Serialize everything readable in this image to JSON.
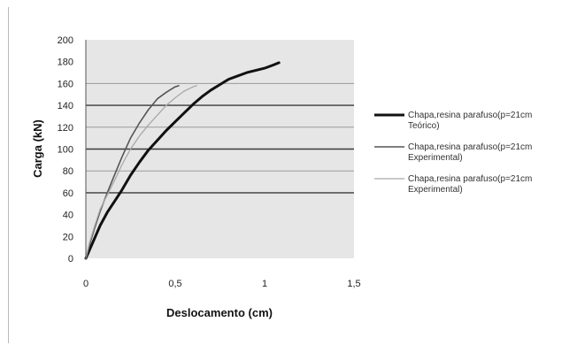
{
  "chart_data": {
    "type": "line",
    "title": "",
    "xlabel": "Deslocamento (cm)",
    "ylabel": "Carga (kN)",
    "xlim": [
      0,
      1.5
    ],
    "ylim": [
      0,
      200
    ],
    "x_ticks": [
      "0",
      "0,5",
      "1",
      "1,5"
    ],
    "x_tick_values": [
      0,
      0.5,
      1,
      1.5
    ],
    "y_ticks": [
      "0",
      "20",
      "40",
      "60",
      "80",
      "100",
      "120",
      "140",
      "160",
      "180",
      "200"
    ],
    "y_tick_values": [
      0,
      20,
      40,
      60,
      80,
      100,
      120,
      140,
      160,
      180,
      200
    ],
    "major_gridlines": [
      60,
      100,
      140
    ],
    "minor_gridlines": [
      80,
      120,
      160
    ],
    "grid": true,
    "plot_background": "#e6e6e6",
    "legend_position": "right",
    "series": [
      {
        "name": "Chapa,resina parafuso(p=21cm Teórico)",
        "legend_lines": [
          "Chapa,resina parafuso(p=21cm",
          "Teórico)"
        ],
        "color": "#111111",
        "style": "thick",
        "x": [
          0,
          0.04,
          0.08,
          0.12,
          0.16,
          0.2,
          0.25,
          0.3,
          0.35,
          0.4,
          0.45,
          0.5,
          0.55,
          0.6,
          0.65,
          0.7,
          0.75,
          0.8,
          0.85,
          0.9,
          0.95,
          1.0,
          1.05,
          1.08
        ],
        "y": [
          0,
          15,
          30,
          42,
          52,
          62,
          76,
          88,
          99,
          108,
          117,
          125,
          133,
          141,
          148,
          154,
          159,
          164,
          167,
          170,
          172,
          174,
          177,
          179
        ]
      },
      {
        "name": "Chapa,resina parafuso(p=21cm Experimental)",
        "legend_lines": [
          "Chapa,resina parafuso(p=21cm",
          "Experimental)"
        ],
        "color": "#555555",
        "style": "medium",
        "x": [
          0,
          0.02,
          0.05,
          0.08,
          0.12,
          0.16,
          0.2,
          0.25,
          0.3,
          0.35,
          0.4,
          0.45,
          0.5,
          0.52
        ],
        "y": [
          0,
          12,
          28,
          43,
          60,
          76,
          92,
          110,
          124,
          136,
          146,
          152,
          157,
          158
        ]
      },
      {
        "name": "Chapa,resina parafuso(p=21cm Experimental)",
        "legend_lines": [
          "Chapa,resina parafuso(p=21cm",
          "Experimental)"
        ],
        "color": "#a8a8a8",
        "style": "thin",
        "x": [
          0,
          0.02,
          0.05,
          0.08,
          0.12,
          0.16,
          0.2,
          0.25,
          0.3,
          0.35,
          0.4,
          0.45,
          0.5,
          0.55,
          0.6,
          0.62
        ],
        "y": [
          0,
          14,
          30,
          45,
          58,
          71,
          85,
          100,
          112,
          122,
          131,
          140,
          147,
          153,
          157,
          158
        ]
      }
    ]
  }
}
